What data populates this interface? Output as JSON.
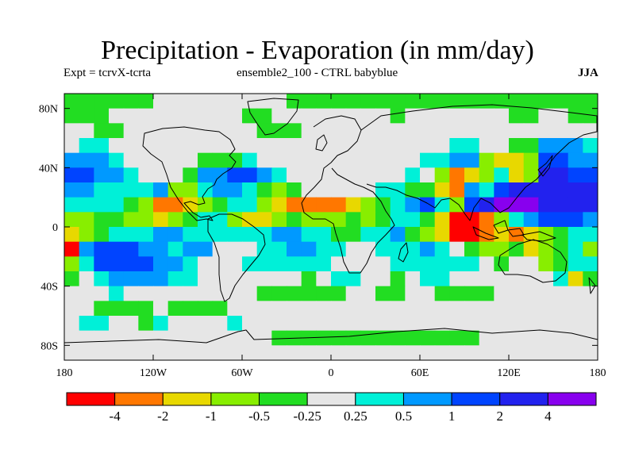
{
  "title": "Precipitation - Evaporation (in mm/day)",
  "subtitle_left": "Expt = tcrvX-tcrta",
  "subtitle_center": "ensemble2_100 - CTRL babyblue",
  "season": "JJA",
  "chart_data": {
    "type": "heatmap",
    "projection": "cylindrical-equidistant",
    "xlim": [
      -180,
      180
    ],
    "ylim": [
      -90,
      90
    ],
    "x_ticks": [
      -180,
      -120,
      -60,
      0,
      60,
      120,
      180
    ],
    "x_tick_labels": [
      "180",
      "120W",
      "60W",
      "0",
      "60E",
      "120E",
      "180"
    ],
    "y_ticks": [
      80,
      40,
      0,
      -40,
      -80
    ],
    "y_tick_labels": [
      "80N",
      "40N",
      "0",
      "40S",
      "80S"
    ],
    "colorbar": {
      "colors": [
        "#ff0000",
        "#ff7700",
        "#e8d800",
        "#88ee00",
        "#22dd22",
        "#e6e6e6",
        "#00f0d8",
        "#0099ff",
        "#0044ff",
        "#2222ee",
        "#8800ee"
      ],
      "levels": [
        -4,
        -2,
        -1,
        -0.5,
        -0.25,
        0.25,
        0.5,
        1,
        2,
        4
      ],
      "level_labels": [
        "-4",
        "-2",
        "-1",
        "-0.5",
        "-0.25",
        "0.25",
        "0.5",
        "1",
        "2",
        "4"
      ]
    },
    "field": {
      "lon": [
        -175,
        -165,
        -155,
        -145,
        -135,
        -125,
        -115,
        -105,
        -95,
        -85,
        -75,
        -65,
        -55,
        -45,
        -35,
        -25,
        -15,
        -5,
        5,
        15,
        25,
        35,
        45,
        55,
        65,
        75,
        85,
        95,
        105,
        115,
        125,
        135,
        145,
        155,
        165,
        175
      ],
      "lat": [
        85,
        75,
        65,
        55,
        45,
        35,
        25,
        15,
        5,
        -5,
        -15,
        -25,
        -35,
        -45,
        -55,
        -65,
        -75,
        -85
      ],
      "values": [
        [
          -0.3,
          -0.3,
          -0.3,
          -0.3,
          -0.3,
          -0.3,
          0,
          0,
          0,
          0,
          0,
          0,
          0,
          0,
          0,
          -0.3,
          -0.3,
          -0.3,
          -0.3,
          -0.3,
          -0.3,
          -0.3,
          -0.3,
          -0.3,
          -0.3,
          -0.3,
          -0.3,
          -0.3,
          -0.3,
          -0.3,
          -0.3,
          -0.3,
          -0.3,
          -0.3,
          -0.3,
          -0.3
        ],
        [
          -0.3,
          -0.3,
          -0.3,
          0,
          0,
          0,
          0,
          0,
          0,
          0,
          0,
          0,
          -0.3,
          -0.3,
          0,
          0,
          0,
          0,
          0,
          0,
          0,
          0,
          -0.3,
          0,
          0,
          0,
          0,
          0,
          0,
          0,
          -0.3,
          -0.3,
          0,
          0,
          -0.3,
          -0.3
        ],
        [
          0,
          0,
          -0.3,
          -0.3,
          0,
          0,
          0,
          0,
          0,
          0,
          0,
          0,
          0,
          -0.3,
          -0.3,
          -0.3,
          0,
          0,
          0,
          0,
          0,
          0,
          0,
          0,
          0,
          0,
          0,
          0,
          0,
          0,
          0,
          0,
          0,
          0,
          0,
          0
        ],
        [
          0,
          0.3,
          0.3,
          0,
          0,
          0,
          0,
          0,
          0,
          0,
          0,
          0,
          0,
          0,
          0,
          0,
          0,
          0,
          0,
          0,
          0,
          0,
          0,
          0,
          0,
          0,
          0.4,
          0.4,
          0,
          0,
          -0.3,
          -0.3,
          0.6,
          0.6,
          0.6,
          0.3
        ],
        [
          0.6,
          0.8,
          0.6,
          0.4,
          0,
          0,
          0,
          0,
          0,
          -0.3,
          -0.3,
          -0.3,
          0.3,
          0,
          0,
          0,
          0,
          0,
          0,
          0,
          0,
          0,
          0,
          0,
          0.3,
          0.3,
          0.8,
          0.6,
          -0.6,
          -1.5,
          -1.5,
          -0.6,
          1.5,
          1.5,
          0.8,
          0.6
        ],
        [
          1.5,
          1.2,
          0.8,
          0.6,
          0.3,
          0,
          0,
          0,
          -0.3,
          0.8,
          0.8,
          1.5,
          1.2,
          0.8,
          0.3,
          0,
          0,
          0,
          0,
          0,
          0,
          0,
          0,
          0.3,
          0,
          -0.6,
          -3,
          -1.5,
          -0.6,
          0.3,
          -1.5,
          -0.6,
          3,
          3,
          1.5,
          1.2
        ],
        [
          0.8,
          0.6,
          0.3,
          0.3,
          0.3,
          0.3,
          0.6,
          -0.6,
          -0.6,
          0.3,
          0.6,
          0.6,
          0.3,
          -0.3,
          -0.6,
          -0.3,
          0,
          0,
          0,
          0,
          0,
          0.3,
          0.3,
          -0.3,
          -0.3,
          -1.5,
          -2.5,
          0.6,
          0.3,
          1.5,
          3,
          3,
          3,
          3,
          3,
          2.5
        ],
        [
          0.3,
          0.3,
          0.3,
          0.3,
          -0.3,
          -0.6,
          -2.5,
          -2.5,
          -1.5,
          -0.6,
          -0.3,
          0.3,
          0.3,
          -0.6,
          -1.5,
          -2.5,
          -2.5,
          -3,
          -2.5,
          -1.5,
          -0.6,
          -0.3,
          0.3,
          0.6,
          1.5,
          0.3,
          -0.6,
          1.5,
          3,
          5,
          5,
          4,
          3,
          3,
          3,
          2
        ],
        [
          -0.6,
          -0.6,
          -0.3,
          -0.3,
          -0.6,
          -0.6,
          -1.5,
          -0.6,
          -0.3,
          0.3,
          0.3,
          -0.6,
          -1.5,
          -1.5,
          -0.6,
          -0.3,
          -0.6,
          -0.6,
          -0.6,
          -0.3,
          -0.6,
          -0.3,
          0.3,
          0.3,
          -0.3,
          -1.5,
          -5,
          -5,
          -3,
          -0.6,
          0.3,
          0.6,
          1.5,
          1.5,
          1.5,
          0.8
        ],
        [
          -1.5,
          -0.6,
          -0.3,
          0.3,
          0.3,
          0.3,
          0.6,
          0.6,
          0.3,
          0.3,
          0.3,
          0.3,
          0.3,
          0.3,
          0.6,
          0.6,
          0.3,
          0.3,
          -0.3,
          -0.3,
          0.3,
          0.3,
          0.6,
          -0.3,
          -0.6,
          -1.5,
          -5,
          -5,
          -3,
          -2,
          -2.5,
          -1.5,
          -0.6,
          -0.3,
          0.3,
          0.3
        ],
        [
          -5,
          0.6,
          1.5,
          1.5,
          1.2,
          0.8,
          0.6,
          0.3,
          0.6,
          0.6,
          0,
          0,
          0,
          0.3,
          0.3,
          0.6,
          0.6,
          0.3,
          0.3,
          0,
          0,
          0.3,
          0.3,
          0.3,
          0.6,
          0.3,
          0,
          -0.3,
          -0.6,
          -0.6,
          -0.3,
          -1.5,
          -0.6,
          -0.3,
          0.3,
          -0.6
        ],
        [
          -0.6,
          0.3,
          1.2,
          1.5,
          1.5,
          1.2,
          0.8,
          0.6,
          0.3,
          0,
          0,
          0,
          0.3,
          0.3,
          0.3,
          0.3,
          0.3,
          0.3,
          0,
          0,
          0,
          0,
          0.3,
          0.3,
          0.3,
          0.3,
          0.3,
          0.3,
          0,
          -0.3,
          0,
          0,
          -0.6,
          -0.3,
          0.3,
          0.3
        ],
        [
          -0.3,
          0,
          0.3,
          0.6,
          0.8,
          0.8,
          0.6,
          0.3,
          0.3,
          0,
          0,
          0,
          0,
          0,
          0,
          0,
          -0.3,
          0,
          0.3,
          0.3,
          0,
          0,
          -0.3,
          0,
          0.3,
          0.3,
          0,
          0,
          0,
          0,
          0,
          0,
          0,
          0.3,
          -1.5,
          -0.3
        ],
        [
          0,
          0,
          0,
          0.3,
          0,
          0,
          0,
          0,
          0,
          0,
          0,
          0,
          0,
          -0.3,
          -0.3,
          -0.3,
          -0.3,
          -0.3,
          -0.3,
          0,
          0,
          -0.3,
          -0.3,
          0,
          0,
          -0.3,
          -0.3,
          -0.3,
          -0.3,
          0,
          0,
          0,
          0,
          0,
          0,
          0
        ],
        [
          0,
          0,
          -0.3,
          -0.3,
          -0.3,
          -0.3,
          0,
          -0.3,
          -0.3,
          -0.3,
          -0.3,
          0,
          0,
          0,
          0,
          0,
          0,
          0,
          0,
          0,
          0,
          0,
          0,
          0,
          0,
          0,
          0,
          0,
          0,
          0,
          0,
          0,
          0,
          0,
          0,
          0
        ],
        [
          0,
          0.3,
          0.3,
          0,
          0,
          -0.3,
          0.3,
          0,
          0,
          0,
          0,
          0.3,
          0,
          0,
          0,
          0,
          0,
          0,
          0,
          0,
          0,
          0,
          0,
          0,
          0,
          0,
          0,
          0,
          0,
          0,
          0,
          0,
          0,
          0,
          0,
          0
        ],
        [
          0,
          0,
          0,
          0,
          0,
          0,
          0,
          0,
          0,
          0,
          0,
          0,
          0,
          0,
          -0.3,
          -0.3,
          -0.3,
          -0.3,
          -0.3,
          -0.3,
          -0.3,
          -0.3,
          -0.3,
          -0.3,
          -0.3,
          -0.3,
          -0.3,
          -0.3,
          0,
          0,
          0,
          0,
          0,
          0,
          0,
          0
        ],
        [
          0,
          0,
          0,
          0,
          0,
          0,
          0,
          0,
          0,
          0,
          0,
          0,
          0,
          0,
          0,
          0,
          0,
          0,
          0,
          0,
          0,
          0,
          0,
          0,
          0,
          0,
          0,
          0,
          0,
          0,
          0,
          0,
          0,
          0,
          0,
          0
        ]
      ]
    }
  }
}
